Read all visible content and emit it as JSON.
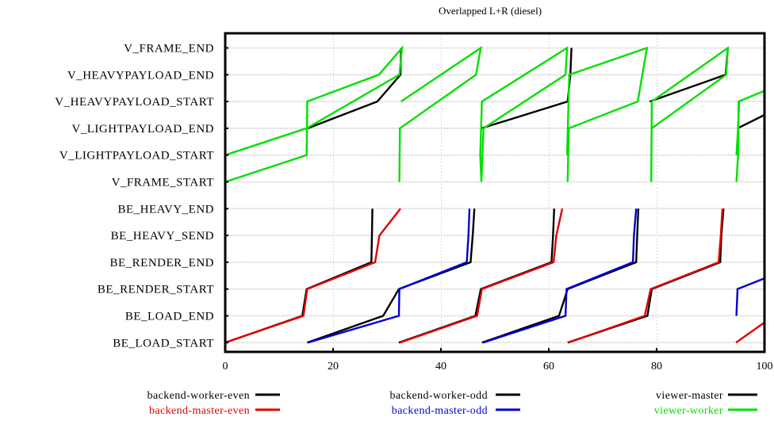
{
  "chart_data": {
    "type": "line",
    "title": "Overlapped L+R (diesel)",
    "xlabel": "",
    "ylabel": "",
    "xlim": [
      0,
      100
    ],
    "x_ticks": [
      "0",
      "20",
      "40",
      "60",
      "80",
      "100"
    ],
    "categories_y": [
      "BE_LOAD_START",
      "BE_LOAD_END",
      "BE_RENDER_START",
      "BE_RENDER_END",
      "BE_HEAVY_SEND",
      "BE_HEAVY_END",
      "V_FRAME_START",
      "V_LIGHTPAYLOAD_START",
      "V_LIGHTPAYLOAD_END",
      "V_HEAVYPAYLOAD_START",
      "V_HEAVYPAYLOAD_END",
      "V_FRAME_END"
    ],
    "grid": true,
    "legend_position": "bottom",
    "legend": [
      {
        "name": "backend-worker-even",
        "color": "#000000",
        "text_color": "#000000"
      },
      {
        "name": "backend-worker-odd",
        "color": "#000000",
        "text_color": "#000000"
      },
      {
        "name": "viewer-master",
        "color": "#000000",
        "text_color": "#000000"
      },
      {
        "name": "backend-master-even",
        "color": "#e00000",
        "text_color": "#e00000"
      },
      {
        "name": "backend-master-odd",
        "color": "#0000d0",
        "text_color": "#0000d0"
      },
      {
        "name": "viewer-worker",
        "color": "#00e000",
        "text_color": "#00e000"
      }
    ],
    "series": [
      {
        "name": "backend-worker-even",
        "color": "#000000",
        "frames": [
          [
            [
              0,
              0
            ],
            [
              14.3,
              1
            ],
            [
              15.1,
              2
            ],
            [
              27.1,
              3
            ],
            [
              27.2,
              4
            ],
            [
              27.3,
              5
            ]
          ],
          [
            [
              32.2,
              0
            ],
            [
              46.4,
              1
            ],
            [
              47.4,
              2
            ],
            [
              60.5,
              3
            ],
            [
              60.8,
              4
            ],
            [
              61.0,
              5
            ]
          ],
          [
            [
              63.5,
              0
            ],
            [
              78.3,
              1
            ],
            [
              79.1,
              2
            ],
            [
              91.8,
              3
            ],
            [
              92.0,
              4
            ],
            [
              92.4,
              5
            ]
          ]
        ]
      },
      {
        "name": "backend-master-even",
        "color": "#e00000",
        "frames": [
          [
            [
              0,
              0
            ],
            [
              14.5,
              1
            ],
            [
              15.2,
              2
            ],
            [
              27.8,
              3
            ],
            [
              28.6,
              4
            ],
            [
              32.5,
              5
            ]
          ],
          [
            [
              32.4,
              0
            ],
            [
              46.7,
              1
            ],
            [
              47.6,
              2
            ],
            [
              60.9,
              3
            ],
            [
              61.4,
              4
            ],
            [
              62.5,
              5
            ]
          ],
          [
            [
              63.6,
              0
            ],
            [
              77.8,
              1
            ],
            [
              78.9,
              2
            ],
            [
              91.5,
              3
            ],
            [
              91.9,
              4
            ],
            [
              92.2,
              5
            ]
          ],
          [
            [
              94.7,
              0
            ],
            [
              100,
              0.75
            ]
          ]
        ]
      },
      {
        "name": "backend-worker-odd",
        "color": "#000000",
        "frames": [
          [
            [
              15.2,
              0
            ],
            [
              29.3,
              1
            ],
            [
              32.2,
              2
            ],
            [
              45.5,
              3
            ],
            [
              45.9,
              4
            ],
            [
              46.2,
              5
            ]
          ],
          [
            [
              47.6,
              0
            ],
            [
              61.9,
              1
            ],
            [
              63.5,
              2
            ],
            [
              76.2,
              3
            ],
            [
              76.4,
              4
            ],
            [
              76.6,
              5
            ]
          ]
        ]
      },
      {
        "name": "backend-master-odd",
        "color": "#0000d0",
        "frames": [
          [
            [
              15.3,
              0
            ],
            [
              32.2,
              1
            ],
            [
              32.3,
              2
            ],
            [
              44.8,
              3
            ],
            [
              45.1,
              4
            ],
            [
              45.3,
              5
            ]
          ],
          [
            [
              47.8,
              0
            ],
            [
              63.1,
              1
            ],
            [
              63.3,
              2
            ],
            [
              75.6,
              3
            ],
            [
              75.8,
              4
            ],
            [
              76.2,
              5
            ]
          ],
          [
            [
              94.8,
              1
            ],
            [
              95.0,
              2
            ],
            [
              100,
              2.4
            ]
          ]
        ]
      },
      {
        "name": "viewer-master",
        "color": "#000000",
        "frames": [
          [
            [
              15.3,
              8
            ],
            [
              28.2,
              9
            ],
            [
              32.5,
              10
            ],
            [
              32.6,
              11
            ]
          ],
          [
            [
              47.5,
              8
            ],
            [
              63.5,
              9
            ],
            [
              64.0,
              10
            ],
            [
              64.2,
              11
            ]
          ],
          [
            [
              78.7,
              9
            ],
            [
              92.8,
              10
            ],
            [
              93.2,
              11
            ]
          ],
          [
            [
              95.0,
              8
            ],
            [
              100,
              8.5
            ]
          ]
        ]
      },
      {
        "name": "viewer-worker",
        "color": "#00e000",
        "frames": [
          [
            [
              0,
              6
            ],
            [
              15.1,
              7
            ],
            [
              15.2,
              9
            ],
            [
              28.5,
              10
            ],
            [
              32.8,
              11
            ],
            [
              32.3,
              10
            ],
            [
              15.1,
              8
            ],
            [
              0,
              7
            ]
          ],
          [
            [
              32.3,
              6
            ],
            [
              32.4,
              8
            ],
            [
              46.5,
              10
            ],
            [
              47.4,
              11
            ],
            [
              32.6,
              9
            ]
          ],
          [
            [
              47.5,
              6
            ],
            [
              47.9,
              8
            ],
            [
              63.1,
              10
            ],
            [
              63.4,
              11
            ],
            [
              47.6,
              9
            ],
            [
              47.3,
              7
            ],
            [
              47.5,
              6
            ]
          ],
          [
            [
              63.5,
              6
            ],
            [
              63.7,
              8
            ],
            [
              76.5,
              9
            ],
            [
              78.2,
              11
            ],
            [
              63.8,
              10
            ],
            [
              63.4,
              7
            ]
          ],
          [
            [
              79.0,
              6
            ],
            [
              79.1,
              9
            ],
            [
              93.2,
              11
            ],
            [
              92.9,
              10
            ],
            [
              79.1,
              8
            ]
          ],
          [
            [
              94.8,
              6
            ],
            [
              95.1,
              7
            ],
            [
              95.2,
              9
            ],
            [
              100,
              9.4
            ]
          ],
          [
            [
              94.8,
              7
            ],
            [
              95.1,
              8
            ],
            [
              95.3,
              9
            ]
          ]
        ]
      }
    ]
  }
}
